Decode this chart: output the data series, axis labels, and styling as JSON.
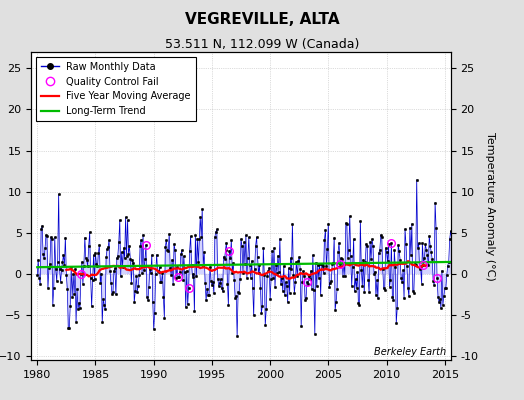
{
  "title": "VEGREVILLE, ALTA",
  "subtitle": "53.511 N, 112.099 W (Canada)",
  "ylabel_right": "Temperature Anomaly (°C)",
  "xlim": [
    1979.5,
    2015.5
  ],
  "ylim": [
    -10.5,
    27
  ],
  "yticks": [
    -10,
    -5,
    0,
    5,
    10,
    15,
    20,
    25
  ],
  "xticks": [
    1980,
    1985,
    1990,
    1995,
    2000,
    2005,
    2010,
    2015
  ],
  "watermark": "Berkeley Earth",
  "bg_color": "#e0e0e0",
  "plot_bg_color": "#ffffff",
  "line_color": "#0000cc",
  "stem_color": "#8888ff",
  "marker_color": "#000000",
  "moving_avg_color": "#ff0000",
  "trend_color": "#00bb00",
  "qc_fail_color": "#ff00ff",
  "seed": 12345,
  "n_years": 36,
  "start_year": 1980,
  "moving_avg_window": 60,
  "qc_fail_indices": [
    45,
    112,
    145,
    156,
    198,
    278,
    312,
    365,
    398,
    412
  ]
}
